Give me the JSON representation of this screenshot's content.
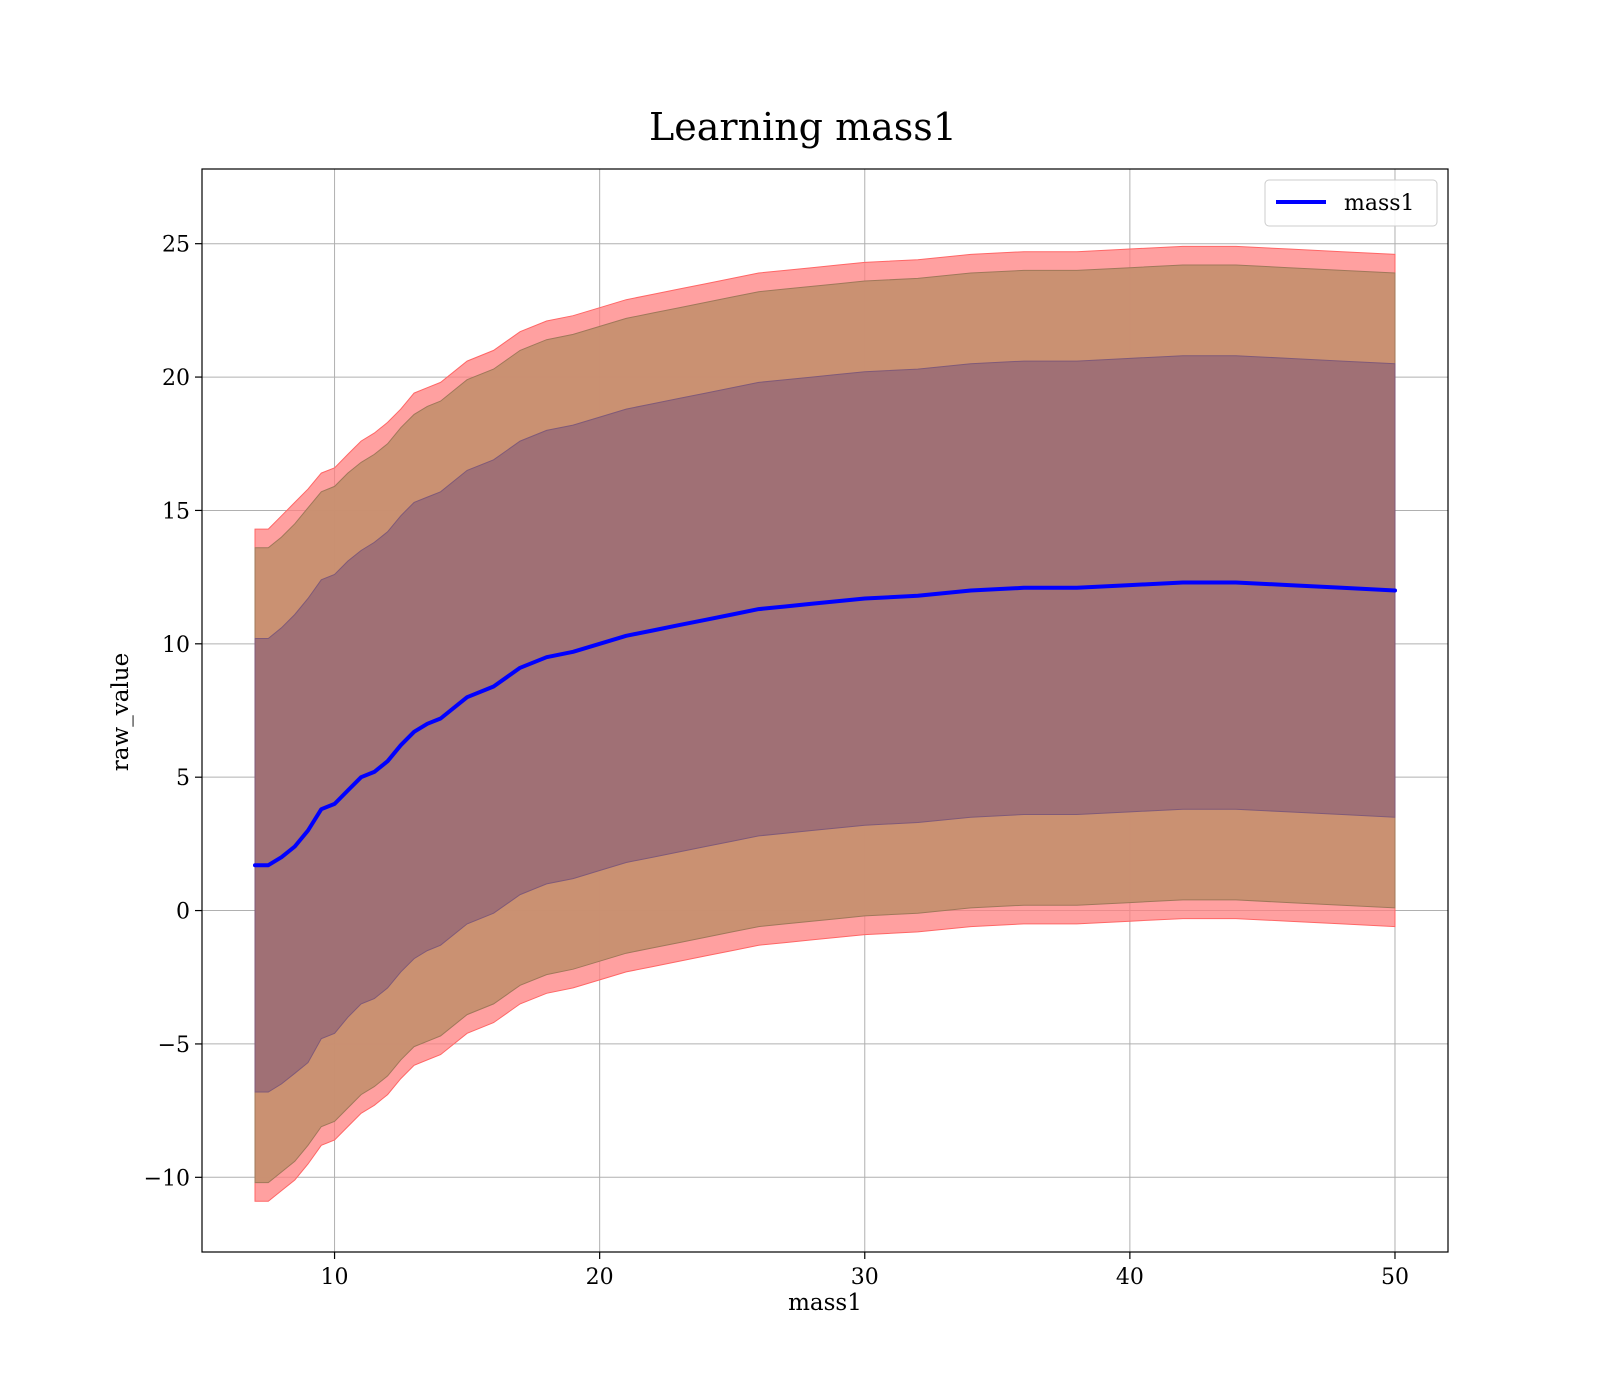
{
  "chart_data": {
    "type": "area",
    "title": "Learning mass1",
    "xlabel": "mass1",
    "ylabel": "raw_value",
    "xlim": [
      5,
      52
    ],
    "ylim": [
      -12.8,
      27.8
    ],
    "x_ticks": [
      10,
      20,
      30,
      40,
      50
    ],
    "y_ticks": [
      25,
      20,
      15,
      10,
      5,
      0,
      -5,
      -10
    ],
    "y_tick_labels": [
      "25",
      "20",
      "15",
      "10",
      "5",
      "0",
      "−5",
      "−10"
    ],
    "grid": true,
    "legend": {
      "position": "top-right",
      "entries": [
        "mass1"
      ]
    },
    "colors": {
      "mean": "#0000ff",
      "band_outer": "#ff8080",
      "band_middle": "#c79070",
      "band_inner": "#a07075"
    },
    "mean_series": {
      "name": "mass1",
      "x": [
        7,
        7.5,
        8,
        8.5,
        9,
        9.5,
        10,
        10.5,
        11,
        11.5,
        12,
        12.5,
        13,
        13.5,
        14,
        15,
        16,
        17,
        18,
        19,
        20,
        21,
        22,
        23,
        24,
        25,
        26,
        27,
        28,
        29,
        30,
        32,
        34,
        36,
        38,
        40,
        42,
        44,
        46,
        48,
        50
      ],
      "y": [
        1.7,
        1.7,
        2.0,
        2.4,
        3.0,
        3.8,
        4.0,
        4.5,
        5.0,
        5.2,
        5.6,
        6.2,
        6.7,
        7.0,
        7.2,
        8.0,
        8.4,
        9.1,
        9.5,
        9.7,
        10.0,
        10.3,
        10.5,
        10.7,
        10.9,
        11.1,
        11.3,
        11.4,
        11.5,
        11.6,
        11.7,
        11.8,
        12.0,
        12.1,
        12.1,
        12.2,
        12.3,
        12.3,
        12.2,
        12.1,
        12.0
      ]
    },
    "bands": {
      "x": [
        7,
        7.5,
        8,
        8.5,
        9,
        9.5,
        10,
        10.5,
        11,
        11.5,
        12,
        12.5,
        13,
        13.5,
        14,
        15,
        16,
        17,
        18,
        19,
        20,
        21,
        22,
        23,
        24,
        25,
        26,
        27,
        28,
        29,
        30,
        32,
        34,
        36,
        38,
        40,
        42,
        44,
        46,
        48,
        50
      ],
      "outer_upper": [
        14.3,
        14.3,
        14.8,
        15.3,
        15.8,
        16.4,
        16.6,
        17.1,
        17.6,
        17.9,
        18.3,
        18.8,
        19.4,
        19.6,
        19.8,
        20.6,
        21.0,
        21.7,
        22.1,
        22.3,
        22.6,
        22.9,
        23.1,
        23.3,
        23.5,
        23.7,
        23.9,
        24.0,
        24.1,
        24.2,
        24.3,
        24.4,
        24.6,
        24.7,
        24.7,
        24.8,
        24.9,
        24.9,
        24.8,
        24.7,
        24.6
      ],
      "middle_upper": [
        13.6,
        13.6,
        14.0,
        14.5,
        15.1,
        15.7,
        15.9,
        16.4,
        16.8,
        17.1,
        17.5,
        18.1,
        18.6,
        18.9,
        19.1,
        19.9,
        20.3,
        21.0,
        21.4,
        21.6,
        21.9,
        22.2,
        22.4,
        22.6,
        22.8,
        23.0,
        23.2,
        23.3,
        23.4,
        23.5,
        23.6,
        23.7,
        23.9,
        24.0,
        24.0,
        24.1,
        24.2,
        24.2,
        24.1,
        24.0,
        23.9
      ],
      "inner_upper": [
        10.2,
        10.2,
        10.6,
        11.1,
        11.7,
        12.4,
        12.6,
        13.1,
        13.5,
        13.8,
        14.2,
        14.8,
        15.3,
        15.5,
        15.7,
        16.5,
        16.9,
        17.6,
        18.0,
        18.2,
        18.5,
        18.8,
        19.0,
        19.2,
        19.4,
        19.6,
        19.8,
        19.9,
        20.0,
        20.1,
        20.2,
        20.3,
        20.5,
        20.6,
        20.6,
        20.7,
        20.8,
        20.8,
        20.7,
        20.6,
        20.5
      ],
      "inner_lower": [
        -6.8,
        -6.8,
        -6.5,
        -6.1,
        -5.7,
        -4.8,
        -4.6,
        -4.0,
        -3.5,
        -3.3,
        -2.9,
        -2.3,
        -1.8,
        -1.5,
        -1.3,
        -0.5,
        -0.1,
        0.6,
        1.0,
        1.2,
        1.5,
        1.8,
        2.0,
        2.2,
        2.4,
        2.6,
        2.8,
        2.9,
        3.0,
        3.1,
        3.2,
        3.3,
        3.5,
        3.6,
        3.6,
        3.7,
        3.8,
        3.8,
        3.7,
        3.6,
        3.5
      ],
      "middle_lower": [
        -10.2,
        -10.2,
        -9.8,
        -9.4,
        -8.8,
        -8.1,
        -7.9,
        -7.4,
        -6.9,
        -6.6,
        -6.2,
        -5.6,
        -5.1,
        -4.9,
        -4.7,
        -3.9,
        -3.5,
        -2.8,
        -2.4,
        -2.2,
        -1.9,
        -1.6,
        -1.4,
        -1.2,
        -1.0,
        -0.8,
        -0.6,
        -0.5,
        -0.4,
        -0.3,
        -0.2,
        -0.1,
        0.1,
        0.2,
        0.2,
        0.3,
        0.4,
        0.4,
        0.3,
        0.2,
        0.1
      ],
      "outer_lower": [
        -10.9,
        -10.9,
        -10.5,
        -10.1,
        -9.5,
        -8.8,
        -8.6,
        -8.1,
        -7.6,
        -7.3,
        -6.9,
        -6.3,
        -5.8,
        -5.6,
        -5.4,
        -4.6,
        -4.2,
        -3.5,
        -3.1,
        -2.9,
        -2.6,
        -2.3,
        -2.1,
        -1.9,
        -1.7,
        -1.5,
        -1.3,
        -1.2,
        -1.1,
        -1.0,
        -0.9,
        -0.8,
        -0.6,
        -0.5,
        -0.5,
        -0.4,
        -0.3,
        -0.3,
        -0.4,
        -0.5,
        -0.6
      ]
    }
  }
}
